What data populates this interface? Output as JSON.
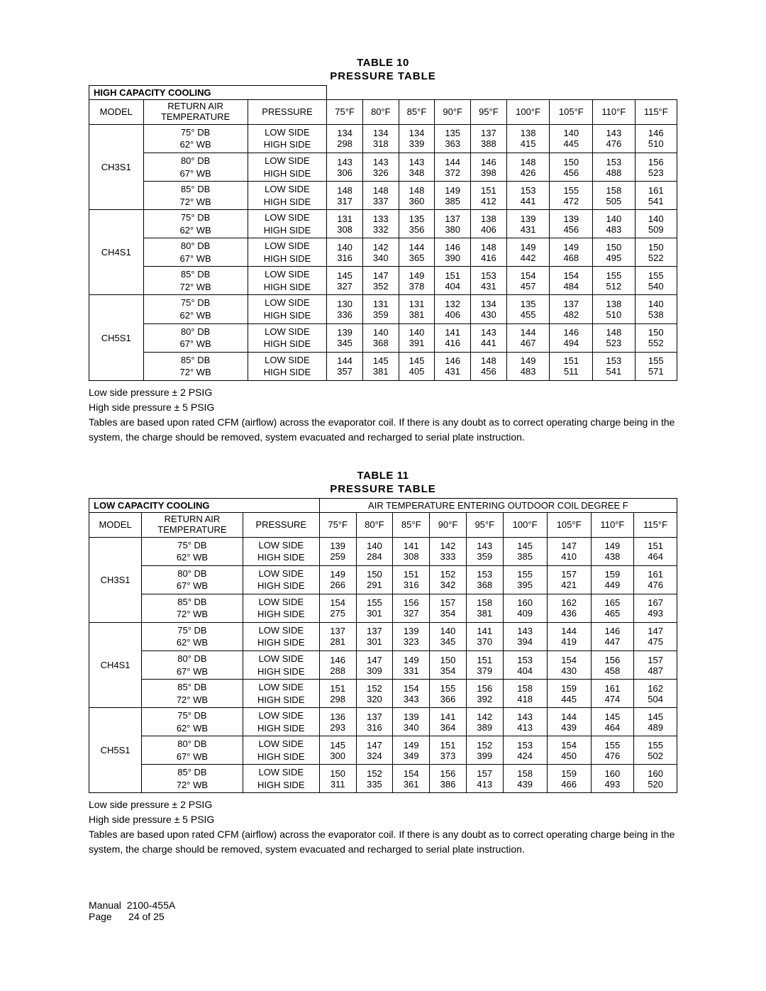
{
  "tables": [
    {
      "table_label": "TABLE  10",
      "table_name": "PRESSURE TABLE",
      "capacity_label": "HIGH CAPACITY COOLING",
      "outdoor_header": "",
      "col_headers": {
        "model": "MODEL",
        "return_air": "RETURN AIR TEMPERATURE",
        "pressure": "PRESSURE"
      },
      "temps": [
        "75°F",
        "80°F",
        "85°F",
        "90°F",
        "95°F",
        "100°F",
        "105°F",
        "110°F",
        "115°F"
      ],
      "models": [
        {
          "name": "CH3S1",
          "rows": [
            {
              "ra": [
                "75° DB",
                "62° WB"
              ],
              "low": [
                134,
                134,
                134,
                135,
                137,
                138,
                140,
                143,
                146
              ],
              "high": [
                298,
                318,
                339,
                363,
                388,
                415,
                445,
                476,
                510
              ]
            },
            {
              "ra": [
                "80° DB",
                "67° WB"
              ],
              "low": [
                143,
                143,
                143,
                144,
                146,
                148,
                150,
                153,
                156
              ],
              "high": [
                306,
                326,
                348,
                372,
                398,
                426,
                456,
                488,
                523
              ]
            },
            {
              "ra": [
                "85° DB",
                "72° WB"
              ],
              "low": [
                148,
                148,
                148,
                149,
                151,
                153,
                155,
                158,
                161
              ],
              "high": [
                317,
                337,
                360,
                385,
                412,
                441,
                472,
                505,
                541
              ]
            }
          ]
        },
        {
          "name": "CH4S1",
          "rows": [
            {
              "ra": [
                "75° DB",
                "62° WB"
              ],
              "low": [
                131,
                133,
                135,
                137,
                138,
                139,
                139,
                140,
                140
              ],
              "high": [
                308,
                332,
                356,
                380,
                406,
                431,
                456,
                483,
                509
              ]
            },
            {
              "ra": [
                "80° DB",
                "67° WB"
              ],
              "low": [
                140,
                142,
                144,
                146,
                148,
                149,
                149,
                150,
                150
              ],
              "high": [
                316,
                340,
                365,
                390,
                416,
                442,
                468,
                495,
                522
              ]
            },
            {
              "ra": [
                "85° DB",
                "72° WB"
              ],
              "low": [
                145,
                147,
                149,
                151,
                153,
                154,
                154,
                155,
                155
              ],
              "high": [
                327,
                352,
                378,
                404,
                431,
                457,
                484,
                512,
                540
              ]
            }
          ]
        },
        {
          "name": "CH5S1",
          "rows": [
            {
              "ra": [
                "75° DB",
                "62° WB"
              ],
              "low": [
                130,
                131,
                131,
                132,
                134,
                135,
                137,
                138,
                140
              ],
              "high": [
                336,
                359,
                381,
                406,
                430,
                455,
                482,
                510,
                538
              ]
            },
            {
              "ra": [
                "80° DB",
                "67° WB"
              ],
              "low": [
                139,
                140,
                140,
                141,
                143,
                144,
                146,
                148,
                150
              ],
              "high": [
                345,
                368,
                391,
                416,
                441,
                467,
                494,
                523,
                552
              ]
            },
            {
              "ra": [
                "85° DB",
                "72° WB"
              ],
              "low": [
                144,
                145,
                145,
                146,
                148,
                149,
                151,
                153,
                155
              ],
              "high": [
                357,
                381,
                405,
                431,
                456,
                483,
                511,
                541,
                571
              ]
            }
          ]
        }
      ],
      "notes": [
        "Low side pressure ± 2 PSIG",
        "High side pressure ± 5 PSIG",
        "Tables are based upon rated CFM (airflow) across the evaporator coil.  If there is any doubt as to correct operating charge being in the system, the charge should be removed, system evacuated and recharged to serial plate instruction."
      ]
    },
    {
      "table_label": "TABLE  11",
      "table_name": "PRESSURE TABLE",
      "capacity_label": "LOW CAPACITY COOLING",
      "outdoor_header": "AIR TEMPERATURE ENTERING OUTDOOR COIL DEGREE F",
      "col_headers": {
        "model": "MODEL",
        "return_air": "RETURN AIR TEMPERATURE",
        "pressure": "PRESSURE"
      },
      "temps": [
        "75°F",
        "80°F",
        "85°F",
        "90°F",
        "95°F",
        "100°F",
        "105°F",
        "110°F",
        "115°F"
      ],
      "models": [
        {
          "name": "CH3S1",
          "rows": [
            {
              "ra": [
                "75° DB",
                "62° WB"
              ],
              "low": [
                139,
                140,
                141,
                142,
                143,
                145,
                147,
                149,
                151
              ],
              "high": [
                259,
                284,
                308,
                333,
                359,
                385,
                410,
                438,
                464
              ]
            },
            {
              "ra": [
                "80° DB",
                "67° WB"
              ],
              "low": [
                149,
                150,
                151,
                152,
                153,
                155,
                157,
                159,
                161
              ],
              "high": [
                266,
                291,
                316,
                342,
                368,
                395,
                421,
                449,
                476
              ]
            },
            {
              "ra": [
                "85° DB",
                "72° WB"
              ],
              "low": [
                154,
                155,
                156,
                157,
                158,
                160,
                162,
                165,
                167
              ],
              "high": [
                275,
                301,
                327,
                354,
                381,
                409,
                436,
                465,
                493
              ]
            }
          ]
        },
        {
          "name": "CH4S1",
          "rows": [
            {
              "ra": [
                "75° DB",
                "62° WB"
              ],
              "low": [
                137,
                137,
                139,
                140,
                141,
                143,
                144,
                146,
                147
              ],
              "high": [
                281,
                301,
                323,
                345,
                370,
                394,
                419,
                447,
                475
              ]
            },
            {
              "ra": [
                "80° DB",
                "67° WB"
              ],
              "low": [
                146,
                147,
                149,
                150,
                151,
                153,
                154,
                156,
                157
              ],
              "high": [
                288,
                309,
                331,
                354,
                379,
                404,
                430,
                458,
                487
              ]
            },
            {
              "ra": [
                "85° DB",
                "72° WB"
              ],
              "low": [
                151,
                152,
                154,
                155,
                156,
                158,
                159,
                161,
                162
              ],
              "high": [
                298,
                320,
                343,
                366,
                392,
                418,
                445,
                474,
                504
              ]
            }
          ]
        },
        {
          "name": "CH5S1",
          "rows": [
            {
              "ra": [
                "75° DB",
                "62° WB"
              ],
              "low": [
                136,
                137,
                139,
                141,
                142,
                143,
                144,
                145,
                145
              ],
              "high": [
                293,
                316,
                340,
                364,
                389,
                413,
                439,
                464,
                489
              ]
            },
            {
              "ra": [
                "80° DB",
                "67° WB"
              ],
              "low": [
                145,
                147,
                149,
                151,
                152,
                153,
                154,
                155,
                155
              ],
              "high": [
                300,
                324,
                349,
                373,
                399,
                424,
                450,
                476,
                502
              ]
            },
            {
              "ra": [
                "85° DB",
                "72° WB"
              ],
              "low": [
                150,
                152,
                154,
                156,
                157,
                158,
                159,
                160,
                160
              ],
              "high": [
                311,
                335,
                361,
                386,
                413,
                439,
                466,
                493,
                520
              ]
            }
          ]
        }
      ],
      "notes": [
        "Low side pressure ± 2 PSIG",
        "High side pressure ± 5 PSIG",
        "Tables are based upon rated CFM (airflow) across the evaporator coil.  If there is any doubt as to correct operating charge being in the system, the charge should be removed, system evacuated and recharged to serial plate instruction."
      ]
    }
  ],
  "side_labels": {
    "low": "LOW SIDE",
    "high": "HIGH SIDE"
  },
  "footer": {
    "manual_label": "Manual",
    "manual_value": "2100-455A",
    "page_label": "Page",
    "page_value": "24 of 25"
  }
}
